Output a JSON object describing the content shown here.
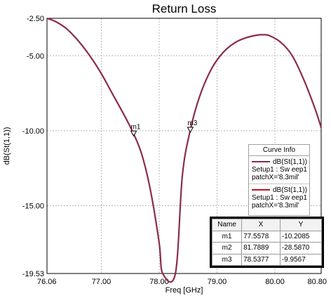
{
  "chart_data": {
    "type": "line",
    "title": "Return Loss",
    "xlabel": "Freq [GHz]",
    "ylabel": "dB(St(1,1))",
    "xlim": [
      76.06,
      80.8
    ],
    "ylim": [
      -19.53,
      -2.5
    ],
    "x_ticks": [
      "76.06",
      "77.00",
      "78.00",
      "79.00",
      "80.00",
      "80.80"
    ],
    "y_ticks": [
      "-2.50",
      "-5.00",
      "-10.00",
      "-15.00",
      "-19.53"
    ],
    "grid": true,
    "series": [
      {
        "name": "dB(St(1,1))",
        "color": "#8b2c4a",
        "x": [
          76.06,
          76.2,
          76.4,
          76.6,
          76.8,
          77.0,
          77.2,
          77.4,
          77.5578,
          77.7,
          77.85,
          78.0,
          78.06,
          78.28,
          78.4,
          78.5377,
          78.7,
          78.9,
          79.1,
          79.3,
          79.5,
          79.7,
          79.8,
          79.9,
          80.1,
          80.3,
          80.5,
          80.7,
          80.8
        ],
        "y": [
          -2.5,
          -2.7,
          -3.2,
          -4.0,
          -5.0,
          -6.2,
          -7.6,
          -9.0,
          -10.2085,
          -11.6,
          -14.0,
          -17.5,
          -19.53,
          -19.53,
          -13.0,
          -9.9567,
          -7.7,
          -5.9,
          -4.8,
          -4.15,
          -3.8,
          -3.62,
          -3.6,
          -3.65,
          -4.1,
          -5.0,
          -6.6,
          -8.6,
          -9.8
        ]
      }
    ],
    "markers": [
      {
        "name": "m1",
        "x": 77.5578,
        "y": -10.2085
      },
      {
        "name": "m3",
        "x": 78.5377,
        "y": -9.9567
      }
    ],
    "legend": {
      "title": "Curve Info",
      "placement": "right",
      "entries": [
        {
          "name": "dB(St(1,1))",
          "line2": "Setup1 : Sw eep1",
          "line3": "patchX='8.3mil'",
          "color": "#8b2c4a"
        },
        {
          "name": "dB(St(1,1))",
          "line2": "Setup1 : Sw eep1",
          "line3": "patchX='8.3mil'",
          "color": "#c1121f"
        }
      ]
    },
    "marker_table": {
      "headers": [
        "Name",
        "X",
        "Y"
      ],
      "rows": [
        [
          "m1",
          "77.5578",
          "-10.2085"
        ],
        [
          "m2",
          "81.7889",
          "-28.5870"
        ],
        [
          "m3",
          "78.5377",
          "-9.9567"
        ]
      ]
    }
  }
}
